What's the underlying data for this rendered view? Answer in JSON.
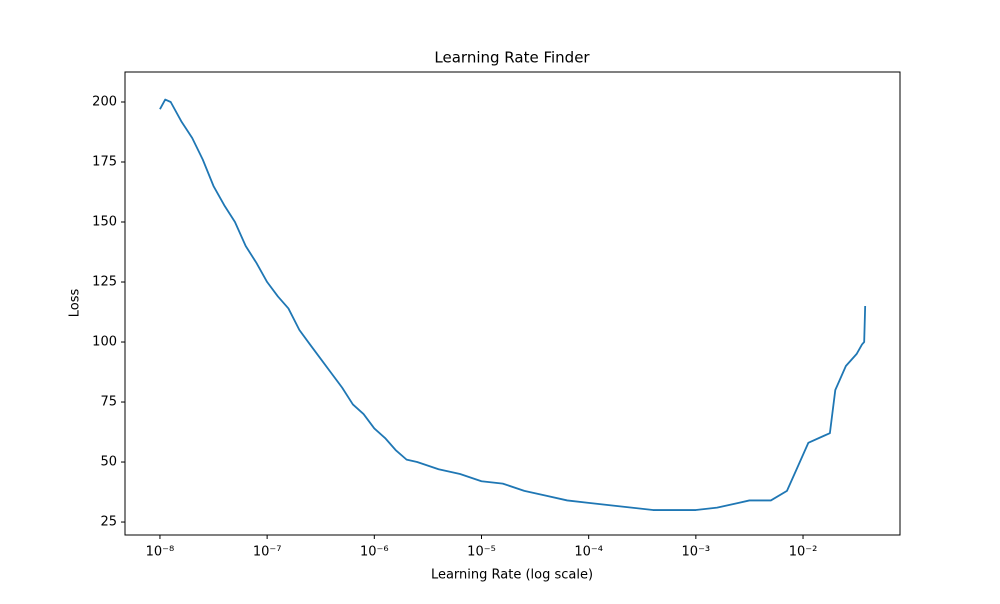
{
  "chart_data": {
    "type": "line",
    "title": "Learning Rate Finder",
    "x_label": "Learning Rate (log scale)",
    "y_label": "Loss",
    "xscale": "log",
    "grid": false,
    "xlim": [
      4.72e-09,
      0.0803
    ],
    "ylim": [
      19.6,
      212.5
    ],
    "xticks": [
      {
        "value": 1e-08,
        "label": "10⁻⁸"
      },
      {
        "value": 1e-07,
        "label": "10⁻⁷"
      },
      {
        "value": 1e-06,
        "label": "10⁻⁶"
      },
      {
        "value": 1e-05,
        "label": "10⁻⁵"
      },
      {
        "value": 0.0001,
        "label": "10⁻⁴"
      },
      {
        "value": 0.001,
        "label": "10⁻³"
      },
      {
        "value": 0.01,
        "label": "10⁻²"
      }
    ],
    "yticks": [
      25,
      50,
      75,
      100,
      125,
      150,
      175,
      200
    ],
    "x": [
      1e-08,
      1.12e-08,
      1.26e-08,
      1.58e-08,
      2e-08,
      2.51e-08,
      3.16e-08,
      3.98e-08,
      5.01e-08,
      6.31e-08,
      7.94e-08,
      1e-07,
      1.26e-07,
      1.58e-07,
      2e-07,
      2.51e-07,
      3.16e-07,
      3.98e-07,
      5.01e-07,
      6.31e-07,
      7.94e-07,
      1e-06,
      1.26e-06,
      1.58e-06,
      2e-06,
      2.51e-06,
      3.98e-06,
      6.31e-06,
      1e-05,
      1.58e-05,
      2.51e-05,
      3.98e-05,
      6.31e-05,
      0.0001,
      0.000158,
      0.000251,
      0.000398,
      0.000631,
      0.001,
      0.00158,
      0.00251,
      0.00316,
      0.00501,
      0.00708,
      0.00891,
      0.0112,
      0.0158,
      0.0178,
      0.02,
      0.0251,
      0.0316,
      0.0355,
      0.0372,
      0.038
    ],
    "series": [
      {
        "name": "Loss",
        "color": "#1f77b4",
        "values": [
          197,
          201,
          200,
          192,
          185,
          176,
          165,
          157,
          150,
          140,
          133,
          125,
          119,
          114,
          105,
          99,
          93,
          87,
          81,
          74,
          70,
          64,
          60,
          55,
          51,
          50,
          47,
          45,
          42,
          41,
          38,
          36,
          34,
          33,
          32,
          31,
          30,
          30,
          30,
          31,
          33,
          34,
          34,
          38,
          48,
          58,
          61,
          62,
          80,
          90,
          95,
          99,
          100,
          115
        ]
      }
    ]
  }
}
